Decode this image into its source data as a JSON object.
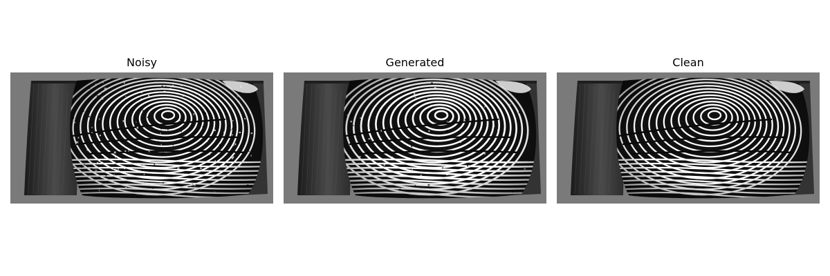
{
  "figure": {
    "panels": [
      {
        "title": "Noisy",
        "variant": "noisy"
      },
      {
        "title": "Generated",
        "variant": "generated"
      },
      {
        "title": "Clean",
        "variant": "clean"
      }
    ],
    "colors": {
      "background": "#7a7a7a",
      "ridge_light": "#ffffff",
      "ridge_dark": "#111111",
      "edge_shadow": "#2a2a2a"
    }
  }
}
